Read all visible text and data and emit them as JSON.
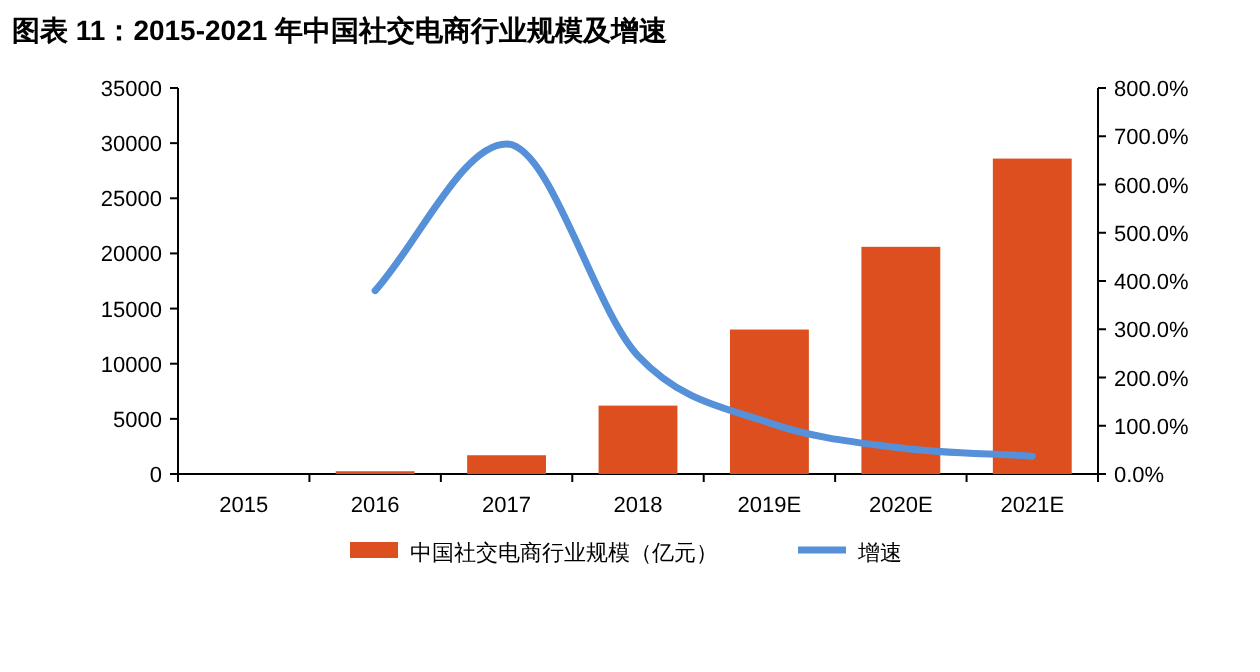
{
  "chart_data": {
    "type": "bar",
    "title": "图表 11：2015-2021 年中国社交电商行业规模及增速",
    "categories": [
      "2015",
      "2016",
      "2017",
      "2018",
      "2019E",
      "2020E",
      "2021E"
    ],
    "series": [
      {
        "name": "中国社交电商行业规模（亿元）",
        "color": "#dd4f1e",
        "values": [
          null,
          250,
          1700,
          6200,
          13100,
          20600,
          28600
        ]
      },
      {
        "name": "增速",
        "type": "line",
        "axis": "y2",
        "color": "#5590d9",
        "values": [
          null,
          380,
          684,
          245,
          106,
          54,
          37
        ]
      }
    ],
    "ylim": [
      0,
      35000
    ],
    "yticks": [
      0,
      5000,
      10000,
      15000,
      20000,
      25000,
      30000,
      35000
    ],
    "y2lim": [
      0,
      800
    ],
    "y2ticks": [
      {
        "value": 0,
        "label": "0.0%"
      },
      {
        "value": 100,
        "label": "100.0%"
      },
      {
        "value": 200,
        "label": "200.0%"
      },
      {
        "value": 300,
        "label": "300.0%"
      },
      {
        "value": 400,
        "label": "400.0%"
      },
      {
        "value": 500,
        "label": "500.0%"
      },
      {
        "value": 600,
        "label": "600.0%"
      },
      {
        "value": 700,
        "label": "700.0%"
      },
      {
        "value": 800,
        "label": "800.0%"
      }
    ],
    "legend": "bottom",
    "grid": false
  }
}
